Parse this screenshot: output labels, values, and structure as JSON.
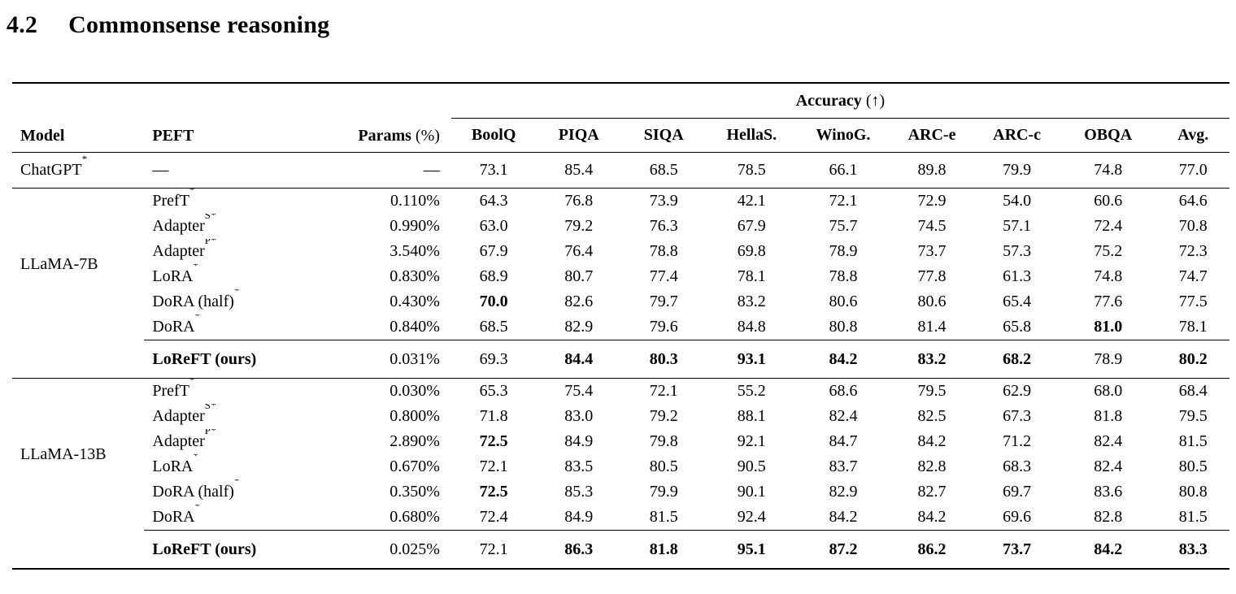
{
  "heading": {
    "number": "4.2",
    "title": "Commonsense reasoning"
  },
  "table": {
    "columns": {
      "model": "Model",
      "peft": "PEFT",
      "params": "Params",
      "params_unit": "(%)",
      "accuracy_group": "Accuracy",
      "accuracy_arrow": "(↑)",
      "scores": [
        "BoolQ",
        "PIQA",
        "SIQA",
        "HellaS.",
        "WinoG.",
        "ARC-e",
        "ARC-c",
        "OBQA",
        "Avg."
      ]
    },
    "baseline_row": {
      "model": "ChatGPT",
      "model_sup": "*",
      "peft": "—",
      "params": "—",
      "scores": [
        "73.1",
        "85.4",
        "68.5",
        "78.5",
        "66.1",
        "89.8",
        "79.9",
        "74.8",
        "77.0"
      ],
      "bold": [
        0,
        0,
        0,
        0,
        0,
        0,
        0,
        0,
        0
      ]
    },
    "groups": [
      {
        "model": "LLaMA-7B",
        "methods": [
          {
            "peft": "PrefT",
            "sup": "*",
            "params": "0.110%",
            "scores": [
              "64.3",
              "76.8",
              "73.9",
              "42.1",
              "72.1",
              "72.9",
              "54.0",
              "60.6",
              "64.6"
            ],
            "bold": [
              0,
              0,
              0,
              0,
              0,
              0,
              0,
              0,
              0
            ]
          },
          {
            "peft": "Adapter",
            "sup": "S*",
            "params": "0.990%",
            "scores": [
              "63.0",
              "79.2",
              "76.3",
              "67.9",
              "75.7",
              "74.5",
              "57.1",
              "72.4",
              "70.8"
            ],
            "bold": [
              0,
              0,
              0,
              0,
              0,
              0,
              0,
              0,
              0
            ]
          },
          {
            "peft": "Adapter",
            "sup": "P*",
            "params": "3.540%",
            "scores": [
              "67.9",
              "76.4",
              "78.8",
              "69.8",
              "78.9",
              "73.7",
              "57.3",
              "75.2",
              "72.3"
            ],
            "bold": [
              0,
              0,
              0,
              0,
              0,
              0,
              0,
              0,
              0
            ]
          },
          {
            "peft": "LoRA",
            "sup": "*",
            "params": "0.830%",
            "scores": [
              "68.9",
              "80.7",
              "77.4",
              "78.1",
              "78.8",
              "77.8",
              "61.3",
              "74.8",
              "74.7"
            ],
            "bold": [
              0,
              0,
              0,
              0,
              0,
              0,
              0,
              0,
              0
            ]
          },
          {
            "peft": "DoRA (half)",
            "sup": "*",
            "params": "0.430%",
            "scores": [
              "70.0",
              "82.6",
              "79.7",
              "83.2",
              "80.6",
              "80.6",
              "65.4",
              "77.6",
              "77.5"
            ],
            "bold": [
              1,
              0,
              0,
              0,
              0,
              0,
              0,
              0,
              0
            ]
          },
          {
            "peft": "DoRA",
            "sup": "*",
            "params": "0.840%",
            "scores": [
              "68.5",
              "82.9",
              "79.6",
              "84.8",
              "80.8",
              "81.4",
              "65.8",
              "81.0",
              "78.1"
            ],
            "bold": [
              0,
              0,
              0,
              0,
              0,
              0,
              0,
              1,
              0
            ]
          }
        ],
        "ours": {
          "peft": "LoReFT (ours)",
          "params": "0.031%",
          "scores": [
            "69.3",
            "84.4",
            "80.3",
            "93.1",
            "84.2",
            "83.2",
            "68.2",
            "78.9",
            "80.2"
          ],
          "bold": [
            0,
            1,
            1,
            1,
            1,
            1,
            1,
            0,
            1
          ]
        }
      },
      {
        "model": "LLaMA-13B",
        "methods": [
          {
            "peft": "PrefT",
            "sup": "*",
            "params": "0.030%",
            "scores": [
              "65.3",
              "75.4",
              "72.1",
              "55.2",
              "68.6",
              "79.5",
              "62.9",
              "68.0",
              "68.4"
            ],
            "bold": [
              0,
              0,
              0,
              0,
              0,
              0,
              0,
              0,
              0
            ]
          },
          {
            "peft": "Adapter",
            "sup": "S*",
            "params": "0.800%",
            "scores": [
              "71.8",
              "83.0",
              "79.2",
              "88.1",
              "82.4",
              "82.5",
              "67.3",
              "81.8",
              "79.5"
            ],
            "bold": [
              0,
              0,
              0,
              0,
              0,
              0,
              0,
              0,
              0
            ]
          },
          {
            "peft": "Adapter",
            "sup": "P*",
            "params": "2.890%",
            "scores": [
              "72.5",
              "84.9",
              "79.8",
              "92.1",
              "84.7",
              "84.2",
              "71.2",
              "82.4",
              "81.5"
            ],
            "bold": [
              1,
              0,
              0,
              0,
              0,
              0,
              0,
              0,
              0
            ]
          },
          {
            "peft": "LoRA",
            "sup": "*",
            "params": "0.670%",
            "scores": [
              "72.1",
              "83.5",
              "80.5",
              "90.5",
              "83.7",
              "82.8",
              "68.3",
              "82.4",
              "80.5"
            ],
            "bold": [
              0,
              0,
              0,
              0,
              0,
              0,
              0,
              0,
              0
            ]
          },
          {
            "peft": "DoRA (half)",
            "sup": "*",
            "params": "0.350%",
            "scores": [
              "72.5",
              "85.3",
              "79.9",
              "90.1",
              "82.9",
              "82.7",
              "69.7",
              "83.6",
              "80.8"
            ],
            "bold": [
              1,
              0,
              0,
              0,
              0,
              0,
              0,
              0,
              0
            ]
          },
          {
            "peft": "DoRA",
            "sup": "*",
            "params": "0.680%",
            "scores": [
              "72.4",
              "84.9",
              "81.5",
              "92.4",
              "84.2",
              "84.2",
              "69.6",
              "82.8",
              "81.5"
            ],
            "bold": [
              0,
              0,
              0,
              0,
              0,
              0,
              0,
              0,
              0
            ]
          }
        ],
        "ours": {
          "peft": "LoReFT (ours)",
          "params": "0.025%",
          "scores": [
            "72.1",
            "86.3",
            "81.8",
            "95.1",
            "87.2",
            "86.2",
            "73.7",
            "84.2",
            "83.3"
          ],
          "bold": [
            0,
            1,
            1,
            1,
            1,
            1,
            1,
            1,
            1
          ]
        }
      }
    ]
  }
}
